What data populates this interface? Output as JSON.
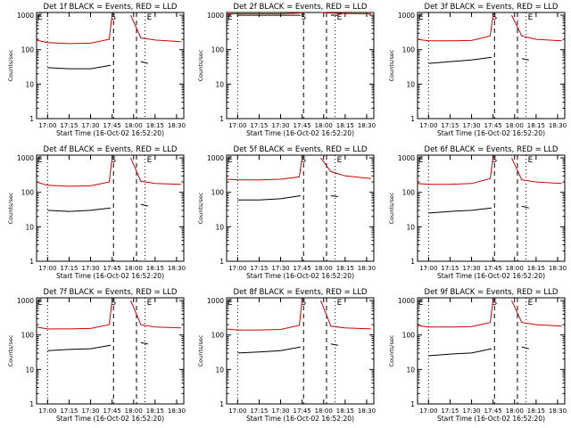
{
  "colors": {
    "events": "#000000",
    "lld": "#d00000",
    "axes": "#000000",
    "background": "#ffffff"
  },
  "common": {
    "xlabel": "Start Time (16-Oct-02 16:52:20)",
    "ylabel": "Counts/sec",
    "xticks": [
      "17:00",
      "17:15",
      "17:30",
      "17:45",
      "18:00",
      "18:15",
      "18:30"
    ],
    "yticks": [
      "1",
      "10",
      "100",
      "1000"
    ],
    "marker_s": "S",
    "marker_e": "E"
  },
  "chart_data": [
    {
      "type": "line",
      "title": "Det 1f BLACK = Events, RED = LLD",
      "x_range": [
        "16:52:20",
        "18:35"
      ],
      "ylim": [
        1,
        1200
      ],
      "y_scale": "log",
      "series": [
        {
          "name": "Events",
          "x": [
            "17:00",
            "17:15",
            "17:30",
            "17:44",
            "17:59",
            "18:05",
            "18:10"
          ],
          "values": [
            30,
            28,
            28,
            35,
            null,
            45,
            40
          ]
        },
        {
          "name": "LLD",
          "x": [
            "16:52",
            "17:00",
            "17:15",
            "17:30",
            "17:43",
            "17:45",
            "17:53",
            "17:58",
            "18:05",
            "18:15",
            "18:33"
          ],
          "values": [
            190,
            160,
            150,
            155,
            200,
            1000,
            null,
            1000,
            220,
            190,
            170
          ]
        }
      ],
      "markers": {
        "S": "17:46",
        "E": "18:08"
      }
    },
    {
      "type": "line",
      "title": "Det 2f BLACK = Events, RED = LLD",
      "x_range": [
        "16:52:20",
        "18:35"
      ],
      "ylim": [
        1,
        1200
      ],
      "y_scale": "log",
      "series": [
        {
          "name": "Events",
          "x": [
            "17:00",
            "17:15",
            "17:30",
            "17:44",
            "17:59",
            "18:05",
            "18:10"
          ],
          "values": [
            1000,
            1000,
            1000,
            1000,
            null,
            1000,
            1000
          ]
        },
        {
          "name": "LLD",
          "x": [
            "16:52",
            "17:00",
            "17:15",
            "17:30",
            "17:43",
            "17:45",
            "17:53",
            "17:58",
            "18:05",
            "18:15",
            "18:33"
          ],
          "values": [
            1100,
            1100,
            1100,
            1100,
            1150,
            1200,
            null,
            1200,
            1150,
            1120,
            1100
          ]
        }
      ],
      "markers": {
        "S": "17:46",
        "E": "18:08"
      }
    },
    {
      "type": "line",
      "title": "Det 3f BLACK = Events, RED = LLD",
      "x_range": [
        "16:52:20",
        "18:35"
      ],
      "ylim": [
        1,
        1200
      ],
      "y_scale": "log",
      "series": [
        {
          "name": "Events",
          "x": [
            "17:00",
            "17:15",
            "17:30",
            "17:44",
            "17:59",
            "18:05",
            "18:10"
          ],
          "values": [
            40,
            45,
            50,
            60,
            null,
            55,
            50
          ]
        },
        {
          "name": "LLD",
          "x": [
            "16:52",
            "17:00",
            "17:15",
            "17:30",
            "17:43",
            "17:45",
            "17:53",
            "17:58",
            "18:05",
            "18:15",
            "18:33"
          ],
          "values": [
            200,
            180,
            180,
            185,
            250,
            1000,
            null,
            1000,
            250,
            200,
            180
          ]
        }
      ],
      "markers": {
        "S": "17:46",
        "E": "18:08"
      }
    },
    {
      "type": "line",
      "title": "Det 4f BLACK = Events, RED = LLD",
      "x_range": [
        "16:52:20",
        "18:35"
      ],
      "ylim": [
        1,
        1200
      ],
      "y_scale": "log",
      "series": [
        {
          "name": "Events",
          "x": [
            "17:00",
            "17:15",
            "17:30",
            "17:44",
            "17:59",
            "18:05",
            "18:10"
          ],
          "values": [
            30,
            28,
            30,
            35,
            null,
            45,
            40
          ]
        },
        {
          "name": "LLD",
          "x": [
            "16:52",
            "17:00",
            "17:15",
            "17:30",
            "17:43",
            "17:45",
            "17:53",
            "17:58",
            "18:05",
            "18:15",
            "18:33"
          ],
          "values": [
            200,
            160,
            150,
            155,
            200,
            1000,
            null,
            1000,
            210,
            180,
            170
          ]
        }
      ],
      "markers": {
        "S": "17:46",
        "E": "18:08"
      }
    },
    {
      "type": "line",
      "title": "Det 5f BLACK = Events, RED = LLD",
      "x_range": [
        "16:52:20",
        "18:35"
      ],
      "ylim": [
        1,
        1200
      ],
      "y_scale": "log",
      "series": [
        {
          "name": "Events",
          "x": [
            "17:00",
            "17:15",
            "17:30",
            "17:44",
            "17:59",
            "18:05",
            "18:10"
          ],
          "values": [
            60,
            60,
            65,
            80,
            null,
            80,
            75
          ]
        },
        {
          "name": "LLD",
          "x": [
            "16:52",
            "17:00",
            "17:15",
            "17:30",
            "17:43",
            "17:45",
            "17:53",
            "17:58",
            "18:05",
            "18:15",
            "18:33"
          ],
          "values": [
            240,
            230,
            230,
            240,
            280,
            1000,
            null,
            1000,
            400,
            300,
            250
          ]
        }
      ],
      "markers": {
        "S": "17:46",
        "E": "18:08"
      }
    },
    {
      "type": "line",
      "title": "Det 6f BLACK = Events, RED = LLD",
      "x_range": [
        "16:52:20",
        "18:35"
      ],
      "ylim": [
        1,
        1200
      ],
      "y_scale": "log",
      "series": [
        {
          "name": "Events",
          "x": [
            "17:00",
            "17:15",
            "17:30",
            "17:44",
            "17:59",
            "18:05",
            "18:10"
          ],
          "values": [
            25,
            28,
            30,
            35,
            null,
            40,
            35
          ]
        },
        {
          "name": "LLD",
          "x": [
            "16:52",
            "17:00",
            "17:15",
            "17:30",
            "17:43",
            "17:45",
            "17:53",
            "17:58",
            "18:05",
            "18:15",
            "18:33"
          ],
          "values": [
            180,
            170,
            170,
            180,
            250,
            1000,
            null,
            1000,
            230,
            200,
            180
          ]
        }
      ],
      "markers": {
        "S": "17:46",
        "E": "18:08"
      }
    },
    {
      "type": "line",
      "title": "Det 7f BLACK = Events, RED = LLD",
      "x_range": [
        "16:52:20",
        "18:35"
      ],
      "ylim": [
        1,
        1200
      ],
      "y_scale": "log",
      "series": [
        {
          "name": "Events",
          "x": [
            "17:00",
            "17:15",
            "17:30",
            "17:44",
            "17:59",
            "18:05",
            "18:10"
          ],
          "values": [
            35,
            38,
            40,
            50,
            null,
            60,
            55
          ]
        },
        {
          "name": "LLD",
          "x": [
            "16:52",
            "17:00",
            "17:15",
            "17:30",
            "17:43",
            "17:45",
            "17:53",
            "17:58",
            "18:05",
            "18:15",
            "18:33"
          ],
          "values": [
            170,
            150,
            150,
            155,
            200,
            1000,
            null,
            1000,
            200,
            170,
            160
          ]
        }
      ],
      "markers": {
        "S": "17:46",
        "E": "18:08"
      }
    },
    {
      "type": "line",
      "title": "Det 8f BLACK = Events, RED = LLD",
      "x_range": [
        "16:52:20",
        "18:35"
      ],
      "ylim": [
        1,
        1200
      ],
      "y_scale": "log",
      "series": [
        {
          "name": "Events",
          "x": [
            "17:00",
            "17:15",
            "17:30",
            "17:44",
            "17:59",
            "18:05",
            "18:10"
          ],
          "values": [
            30,
            32,
            35,
            45,
            null,
            55,
            50
          ]
        },
        {
          "name": "LLD",
          "x": [
            "16:52",
            "17:00",
            "17:15",
            "17:30",
            "17:43",
            "17:45",
            "17:53",
            "17:58",
            "18:05",
            "18:15",
            "18:33"
          ],
          "values": [
            150,
            140,
            140,
            145,
            190,
            1000,
            null,
            1000,
            180,
            160,
            150
          ]
        }
      ],
      "markers": {
        "S": "17:46",
        "E": "18:08"
      }
    },
    {
      "type": "line",
      "title": "Det 9f BLACK = Events, RED = LLD",
      "x_range": [
        "16:52:20",
        "18:35"
      ],
      "ylim": [
        1,
        1200
      ],
      "y_scale": "log",
      "series": [
        {
          "name": "Events",
          "x": [
            "17:00",
            "17:15",
            "17:30",
            "17:44",
            "17:59",
            "18:05",
            "18:10"
          ],
          "values": [
            25,
            28,
            30,
            40,
            null,
            45,
            40
          ]
        },
        {
          "name": "LLD",
          "x": [
            "16:52",
            "17:00",
            "17:15",
            "17:30",
            "17:43",
            "17:45",
            "17:53",
            "17:58",
            "18:05",
            "18:15",
            "18:33"
          ],
          "values": [
            190,
            170,
            170,
            175,
            230,
            1000,
            null,
            1000,
            230,
            200,
            180
          ]
        }
      ],
      "markers": {
        "S": "17:46",
        "E": "18:08"
      }
    }
  ]
}
